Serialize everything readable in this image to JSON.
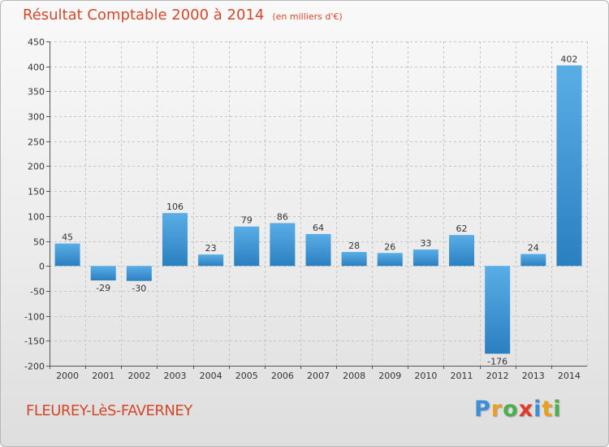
{
  "header": {
    "title": "Résultat Comptable 2000 à 2014",
    "unit": "(en milliers d'€)"
  },
  "footer": {
    "commune": "FLEUREY-LèS-FAVERNEY",
    "logo_letters": [
      "P",
      "r",
      "o",
      "x",
      "i",
      "t",
      "i"
    ]
  },
  "colors": {
    "title": "#d1482a",
    "bar_light": "#5aaee6",
    "bar_dark": "#2a7fc0",
    "grid": "#c4c4c4",
    "axis": "#555555",
    "logo": [
      "#3a8fd8",
      "#e8a020",
      "#4cae4c",
      "#e23a2a",
      "#3a8fd8",
      "#e8a020",
      "#4cae4c"
    ]
  },
  "chart_data": {
    "type": "bar",
    "title": "Résultat Comptable 2000 à 2014",
    "ylabel": "en milliers d'€",
    "xlabel": "",
    "categories": [
      "2000",
      "2001",
      "2002",
      "2003",
      "2004",
      "2005",
      "2006",
      "2007",
      "2008",
      "2009",
      "2010",
      "2011",
      "2012",
      "2013",
      "2014"
    ],
    "values": [
      45,
      -29,
      -30,
      106,
      23,
      79,
      86,
      64,
      28,
      26,
      33,
      62,
      -176,
      24,
      402
    ],
    "ylim": [
      -200,
      450
    ],
    "yticks": [
      450,
      400,
      350,
      300,
      250,
      200,
      150,
      100,
      50,
      0,
      -50,
      -100,
      -150,
      -200
    ],
    "grid": true
  }
}
